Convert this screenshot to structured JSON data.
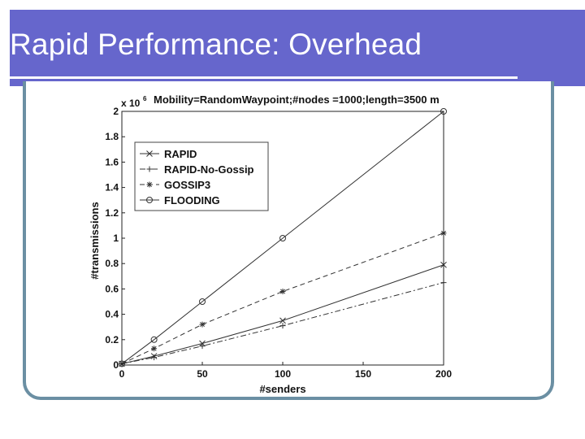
{
  "slide": {
    "title": "Rapid Performance: Overhead"
  },
  "colors": {
    "title_bar": "#6666cc",
    "frame": "#6b8fa3"
  },
  "chart_data": {
    "type": "line",
    "title": "Mobility=RandomWaypoint;#nodes =1000;length=3500 m",
    "xlabel": "#senders",
    "ylabel": "#transmissions",
    "y_multiplier": "x 10",
    "y_exponent": "6",
    "xlim": [
      0,
      200
    ],
    "ylim": [
      0,
      2
    ],
    "x_ticks": [
      0,
      50,
      100,
      150,
      200
    ],
    "y_ticks": [
      0,
      0.2,
      0.4,
      0.6,
      0.8,
      1,
      1.2,
      1.4,
      1.6,
      1.8,
      2
    ],
    "legend_position": "top-left",
    "series": [
      {
        "name": "RAPID",
        "marker": "x",
        "dash": "solid",
        "x": [
          0,
          20,
          50,
          100,
          200
        ],
        "y": [
          0.01,
          0.07,
          0.17,
          0.35,
          0.79
        ]
      },
      {
        "name": "RAPID-No-Gossip",
        "marker": "+",
        "dash": "dashdot",
        "x": [
          0,
          20,
          50,
          100,
          200
        ],
        "y": [
          0.01,
          0.06,
          0.15,
          0.31,
          0.65
        ]
      },
      {
        "name": "GOSSIP3",
        "marker": "*",
        "dash": "dashed",
        "x": [
          0,
          20,
          50,
          100,
          200
        ],
        "y": [
          0.01,
          0.13,
          0.32,
          0.58,
          1.04
        ]
      },
      {
        "name": "FLOODING",
        "marker": "o",
        "dash": "solid",
        "x": [
          0,
          20,
          50,
          100,
          200
        ],
        "y": [
          0.01,
          0.2,
          0.5,
          1.0,
          2.0
        ]
      }
    ]
  }
}
